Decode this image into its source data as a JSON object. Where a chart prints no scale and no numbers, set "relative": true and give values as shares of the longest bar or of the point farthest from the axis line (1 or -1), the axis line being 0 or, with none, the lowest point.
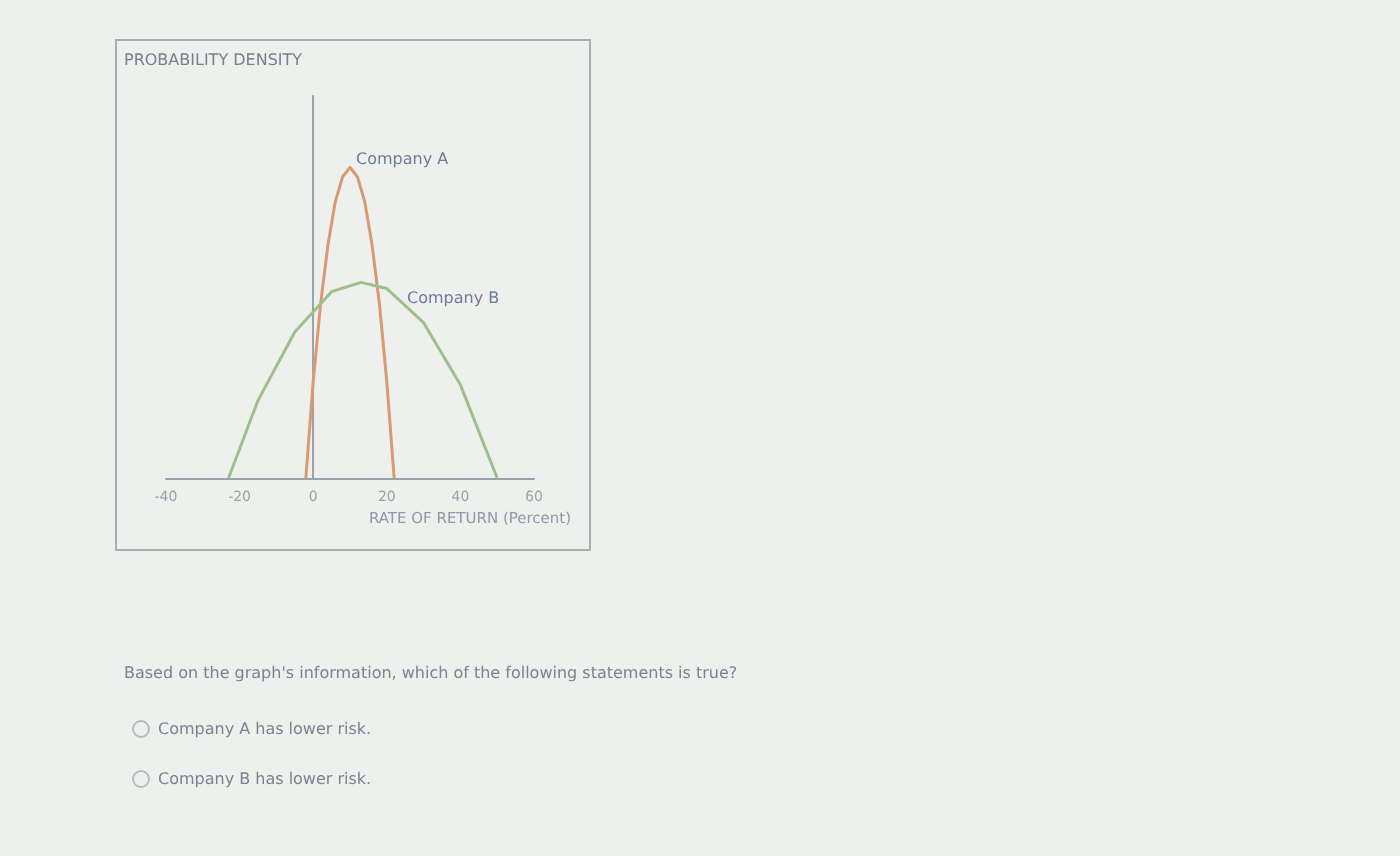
{
  "chart_data": {
    "type": "line",
    "relative": true,
    "xlabel": "RATE OF RETURN (Percent)",
    "xlim": [
      -40,
      60
    ],
    "xticks": [
      -40,
      -20,
      0,
      20,
      40,
      60
    ],
    "legend": false,
    "marker": "none",
    "series": [
      {
        "name": "Company A",
        "color": "#d99a72",
        "x": [
          -2,
          0,
          2,
          4,
          6,
          8,
          10,
          12,
          14,
          16,
          18,
          20,
          22
        ],
        "values": [
          0,
          0.31,
          0.56,
          0.75,
          0.89,
          0.97,
          1,
          0.97,
          0.89,
          0.75,
          0.56,
          0.31,
          0
        ]
      },
      {
        "name": "Company B",
        "color": "#9dbf8c",
        "x": [
          -23,
          -15,
          -5,
          5,
          13,
          20,
          30,
          40,
          50
        ],
        "values": [
          0,
          0.25,
          0.47,
          0.6,
          0.63,
          0.61,
          0.5,
          0.3,
          0
        ]
      }
    ],
    "annotations": [
      "PROBABILITY DENSITY",
      "Based on the graph's information, which of the following statements is true?",
      "Company A has lower risk.",
      "Company B has lower risk."
    ]
  }
}
